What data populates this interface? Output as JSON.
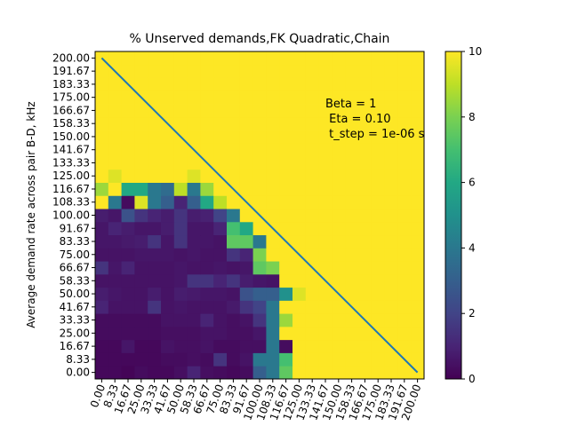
{
  "chart_data": {
    "type": "heatmap",
    "title": "% Unserved demands,FK Quadratic,Chain",
    "xlabel": "",
    "ylabel": "Average demand rate across pair B-D, kHz",
    "x_tick_labels": [
      "0.00",
      "8.33",
      "16.67",
      "25.00",
      "33.33",
      "41.67",
      "50.00",
      "58.33",
      "66.67",
      "75.00",
      "83.33",
      "91.67",
      "100.00",
      "108.33",
      "116.67",
      "125.00",
      "133.33",
      "141.67",
      "150.00",
      "158.33",
      "166.67",
      "175.00",
      "183.33",
      "191.67",
      "200.00"
    ],
    "y_tick_labels": [
      "0.00",
      "8.33",
      "16.67",
      "25.00",
      "33.33",
      "41.67",
      "50.00",
      "58.33",
      "66.67",
      "75.00",
      "83.33",
      "91.67",
      "100.00",
      "108.33",
      "116.67",
      "125.00",
      "133.33",
      "141.67",
      "150.00",
      "158.33",
      "166.67",
      "175.00",
      "183.33",
      "191.67",
      "200.00"
    ],
    "colorbar": {
      "min": 0,
      "max": 10,
      "ticks": [
        0,
        2,
        4,
        6,
        8,
        10
      ]
    },
    "colormap": [
      "#440154",
      "#482475",
      "#414487",
      "#355f8d",
      "#2a788e",
      "#21918c",
      "#22a884",
      "#44bf70",
      "#7ad151",
      "#bddf26",
      "#fde725"
    ],
    "annotation": [
      "Beta = 1",
      " Eta = 0.10",
      " t_step = 1e-06 s"
    ],
    "diagonal_line": {
      "from": [
        0,
        200
      ],
      "to": [
        200,
        0
      ],
      "color": "#1f77b4"
    },
    "values": [
      [
        0.2,
        0.2,
        0.1,
        0.3,
        0.2,
        0.2,
        0.4,
        1.0,
        0.4,
        0.3,
        0.2,
        0.3,
        3.0,
        4.0,
        7.5,
        10,
        10,
        10,
        10,
        10,
        10,
        10,
        10,
        10,
        10
      ],
      [
        0.2,
        0.2,
        0.2,
        0.2,
        0.2,
        0.3,
        0.3,
        0.4,
        0.3,
        1.5,
        0.3,
        0.5,
        4.0,
        4.0,
        7.0,
        10,
        10,
        10,
        10,
        10,
        10,
        10,
        10,
        10,
        10
      ],
      [
        0.2,
        0.2,
        0.6,
        0.2,
        0.2,
        0.5,
        0.4,
        0.4,
        0.5,
        0.3,
        0.3,
        0.4,
        0.4,
        4.0,
        0.3,
        10,
        10,
        10,
        10,
        10,
        10,
        10,
        10,
        10,
        10
      ],
      [
        0.3,
        0.3,
        0.3,
        0.3,
        0.3,
        0.4,
        0.4,
        0.4,
        0.5,
        0.5,
        0.4,
        0.4,
        0.6,
        4.0,
        10,
        10,
        10,
        10,
        10,
        10,
        10,
        10,
        10,
        10,
        10
      ],
      [
        0.3,
        0.3,
        0.3,
        0.3,
        0.3,
        0.5,
        0.5,
        0.5,
        1.0,
        0.5,
        0.4,
        0.5,
        1.5,
        4.0,
        8.5,
        10,
        10,
        10,
        10,
        10,
        10,
        10,
        10,
        10,
        10
      ],
      [
        1.0,
        0.5,
        0.5,
        0.5,
        1.5,
        0.5,
        0.6,
        0.5,
        0.5,
        0.5,
        0.7,
        1.5,
        2.0,
        4.0,
        10,
        10,
        10,
        10,
        10,
        10,
        10,
        10,
        10,
        10,
        10
      ],
      [
        0.8,
        0.6,
        0.5,
        0.5,
        0.8,
        0.5,
        0.8,
        0.7,
        0.6,
        0.6,
        0.5,
        2.5,
        3.0,
        3.0,
        5.0,
        9.5,
        10,
        10,
        10,
        10,
        10,
        10,
        10,
        10,
        10
      ],
      [
        0.5,
        0.5,
        0.5,
        0.5,
        0.5,
        0.5,
        0.6,
        1.5,
        1.5,
        1.0,
        1.5,
        0.8,
        0.6,
        0.5,
        10,
        10,
        10,
        10,
        10,
        10,
        10,
        10,
        10,
        10,
        10
      ],
      [
        1.5,
        0.6,
        1.0,
        0.5,
        0.5,
        0.5,
        0.6,
        0.5,
        0.5,
        0.6,
        0.5,
        0.6,
        7.5,
        8.0,
        10,
        10,
        10,
        10,
        10,
        10,
        10,
        10,
        10,
        10,
        10
      ],
      [
        0.5,
        0.5,
        0.5,
        0.6,
        0.6,
        0.6,
        0.5,
        0.6,
        0.5,
        0.5,
        1.5,
        1.0,
        8.0,
        10,
        10,
        10,
        10,
        10,
        10,
        10,
        10,
        10,
        10,
        10,
        10
      ],
      [
        0.6,
        0.6,
        0.7,
        0.8,
        1.5,
        0.6,
        1.5,
        0.6,
        0.6,
        0.5,
        7.5,
        7.5,
        4.0,
        10,
        10,
        10,
        10,
        10,
        10,
        10,
        10,
        10,
        10,
        10,
        10
      ],
      [
        0.6,
        1.0,
        0.8,
        0.6,
        0.6,
        0.8,
        1.5,
        0.6,
        0.6,
        1.0,
        7.0,
        6.0,
        10,
        10,
        10,
        10,
        10,
        10,
        10,
        10,
        10,
        10,
        10,
        10,
        10
      ],
      [
        0.8,
        0.6,
        2.5,
        1.5,
        1.0,
        0.8,
        1.5,
        0.8,
        0.9,
        2.0,
        4.0,
        10,
        10,
        10,
        10,
        10,
        10,
        10,
        10,
        10,
        10,
        10,
        10,
        10,
        10
      ],
      [
        10,
        4.0,
        0.3,
        9.5,
        4.0,
        3.0,
        1.0,
        3.0,
        6.0,
        9.0,
        10,
        10,
        10,
        10,
        10,
        10,
        10,
        10,
        10,
        10,
        10,
        10,
        10,
        10,
        10
      ],
      [
        8.5,
        10,
        6.0,
        6.0,
        4.0,
        3.5,
        9.0,
        4.0,
        8.5,
        10,
        10,
        10,
        10,
        10,
        10,
        10,
        10,
        10,
        10,
        10,
        10,
        10,
        10,
        10,
        10
      ],
      [
        10,
        9.5,
        10,
        10,
        10,
        10,
        10,
        9.5,
        10,
        10,
        10,
        10,
        10,
        10,
        10,
        10,
        10,
        10,
        10,
        10,
        10,
        10,
        10,
        10,
        10
      ],
      [
        10,
        10,
        10,
        10,
        10,
        10,
        10,
        10,
        10,
        10,
        10,
        10,
        10,
        10,
        10,
        10,
        10,
        10,
        10,
        10,
        10,
        10,
        10,
        10,
        10
      ],
      [
        10,
        10,
        10,
        10,
        10,
        10,
        10,
        10,
        10,
        10,
        10,
        10,
        10,
        10,
        10,
        10,
        10,
        10,
        10,
        10,
        10,
        10,
        10,
        10,
        10
      ],
      [
        10,
        10,
        10,
        10,
        10,
        10,
        10,
        10,
        10,
        10,
        10,
        10,
        10,
        10,
        10,
        10,
        10,
        10,
        10,
        10,
        10,
        10,
        10,
        10,
        10
      ],
      [
        10,
        10,
        10,
        10,
        10,
        10,
        10,
        10,
        10,
        10,
        10,
        10,
        10,
        10,
        10,
        10,
        10,
        10,
        10,
        10,
        10,
        10,
        10,
        10,
        10
      ],
      [
        10,
        10,
        10,
        10,
        10,
        10,
        10,
        10,
        10,
        10,
        10,
        10,
        10,
        10,
        10,
        10,
        10,
        10,
        10,
        10,
        10,
        10,
        10,
        10,
        10
      ],
      [
        10,
        10,
        10,
        10,
        10,
        10,
        10,
        10,
        10,
        10,
        10,
        10,
        10,
        10,
        10,
        10,
        10,
        10,
        10,
        10,
        10,
        10,
        10,
        10,
        10
      ],
      [
        10,
        10,
        10,
        10,
        10,
        10,
        10,
        10,
        10,
        10,
        10,
        10,
        10,
        10,
        10,
        10,
        10,
        10,
        10,
        10,
        10,
        10,
        10,
        10,
        10
      ],
      [
        10,
        10,
        10,
        10,
        10,
        10,
        10,
        10,
        10,
        10,
        10,
        10,
        10,
        10,
        10,
        10,
        10,
        10,
        10,
        10,
        10,
        10,
        10,
        10,
        10
      ],
      [
        10,
        10,
        10,
        10,
        10,
        10,
        10,
        10,
        10,
        10,
        10,
        10,
        10,
        10,
        10,
        10,
        10,
        10,
        10,
        10,
        10,
        10,
        10,
        10,
        10
      ]
    ]
  }
}
